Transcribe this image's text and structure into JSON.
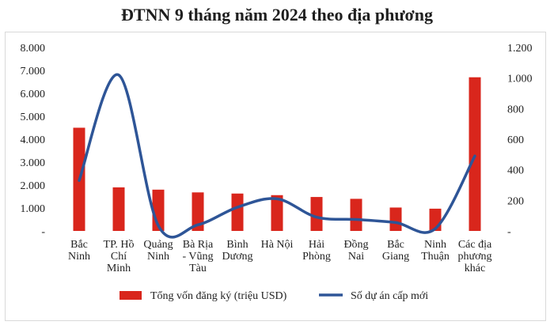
{
  "chart_data": {
    "type": "bar",
    "title": "ĐTNN 9 tháng năm 2024 theo địa phương",
    "categories": [
      [
        "Bắc",
        "Ninh"
      ],
      [
        "TP. Hồ",
        "Chí",
        "Minh"
      ],
      [
        "Quảng",
        "Ninh"
      ],
      [
        "Bà Rịa",
        "- Vũng",
        "Tàu"
      ],
      [
        "Bình",
        "Dương"
      ],
      [
        "Hà Nội"
      ],
      [
        "Hải",
        "Phòng"
      ],
      [
        "Đồng",
        "Nai"
      ],
      [
        "Bắc",
        "Giang"
      ],
      [
        "Ninh",
        "Thuận"
      ],
      [
        "Các địa",
        "phương",
        "khác"
      ]
    ],
    "series": [
      {
        "name": "Tổng vốn đăng ký (triệu USD)",
        "type": "bar",
        "axis": "left",
        "color": "#d9261c",
        "values": [
          4500,
          1900,
          1800,
          1680,
          1630,
          1560,
          1480,
          1400,
          1020,
          970,
          6700
        ]
      },
      {
        "name": "Số dự án cấp mới",
        "type": "line",
        "axis": "right",
        "color": "#2e5597",
        "values": [
          330,
          1020,
          35,
          40,
          155,
          210,
          90,
          75,
          55,
          15,
          490
        ]
      }
    ],
    "yleft": {
      "min": 0,
      "max": 8000,
      "ticks": [
        "-",
        "1.000",
        "2.000",
        "3.000",
        "4.000",
        "5.000",
        "6.000",
        "7.000",
        "8.000"
      ]
    },
    "yright": {
      "min": 0,
      "max": 1200,
      "ticks": [
        "-",
        "200",
        "400",
        "600",
        "800",
        "1.000",
        "1.200"
      ]
    },
    "legend_position": "bottom",
    "grid": false
  }
}
